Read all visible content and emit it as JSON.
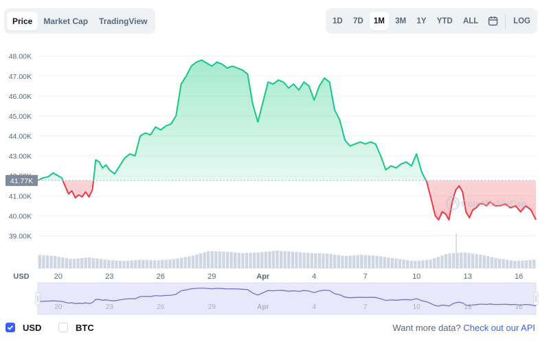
{
  "tabs_left": [
    "Price",
    "Market Cap",
    "TradingView"
  ],
  "tabs_left_active": 0,
  "tabs_right": [
    "1D",
    "7D",
    "1M",
    "3M",
    "1Y",
    "YTD",
    "ALL"
  ],
  "tabs_right_active": 2,
  "log_label": "LOG",
  "calendar_icon": "calendar-icon",
  "watermark": "CoinMarketCap",
  "footer": {
    "usd_label": "USD",
    "btc_label": "BTC",
    "usd_checked": true,
    "btc_checked": false,
    "api_text": "Want more data?",
    "api_link": "Check out our API"
  },
  "colors": {
    "up": "#16c784",
    "down": "#ea3943",
    "accent": "#3861fb",
    "volume": "#cfd6e4",
    "nav_line": "#6f6fcf",
    "nav_fill": "#e8e8fa"
  },
  "chart_data": {
    "type": "area",
    "currency_label": "USD",
    "y_ticks": [
      "48.00K",
      "47.00K",
      "46.00K",
      "45.00K",
      "44.00K",
      "43.00K",
      "42.00K",
      "41.00K",
      "40.00K",
      "39.00K"
    ],
    "ylim": [
      38500,
      48300
    ],
    "reference_value": 41770,
    "reference_label": "41.77K",
    "x_ticks": [
      "20",
      "23",
      "26",
      "29",
      "Apr",
      "4",
      "7",
      "10",
      "13",
      "16"
    ],
    "x_tick_positions": [
      1.2,
      4.2,
      7.2,
      10.2,
      13.2,
      16.2,
      19.2,
      22.2,
      25.2,
      28.2
    ],
    "xlim": [
      0,
      29.2
    ],
    "price": {
      "x": [
        0,
        0.3,
        0.6,
        0.9,
        1.2,
        1.4,
        1.6,
        1.8,
        2.0,
        2.2,
        2.4,
        2.6,
        2.8,
        3.0,
        3.2,
        3.4,
        3.6,
        3.8,
        4.0,
        4.2,
        4.5,
        4.8,
        5.1,
        5.4,
        5.7,
        6.0,
        6.3,
        6.6,
        6.9,
        7.2,
        7.5,
        7.8,
        8.1,
        8.4,
        8.7,
        9.0,
        9.3,
        9.6,
        9.9,
        10.2,
        10.5,
        10.8,
        11.1,
        11.4,
        11.7,
        12.0,
        12.3,
        12.6,
        12.9,
        13.2,
        13.5,
        13.8,
        14.1,
        14.4,
        14.7,
        15.0,
        15.3,
        15.6,
        15.9,
        16.2,
        16.5,
        16.8,
        17.1,
        17.4,
        17.7,
        18.0,
        18.3,
        18.6,
        18.9,
        19.2,
        19.5,
        19.8,
        20.1,
        20.4,
        20.7,
        21.0,
        21.3,
        21.6,
        21.9,
        22.2,
        22.5,
        22.8,
        23.1,
        23.3,
        23.5,
        23.7,
        23.9,
        24.1,
        24.3,
        24.5,
        24.7,
        24.9,
        25.1,
        25.3,
        25.5,
        25.7,
        25.9,
        26.1,
        26.3,
        26.5,
        26.8,
        27.1,
        27.4,
        27.7,
        28.0,
        28.3,
        28.6,
        28.9,
        29.2
      ],
      "y": [
        41770,
        41900,
        41950,
        42150,
        42000,
        41900,
        41500,
        41100,
        41250,
        40900,
        41050,
        40950,
        41200,
        40950,
        41300,
        42800,
        42700,
        42400,
        42550,
        42300,
        42100,
        42500,
        42900,
        43100,
        43000,
        44000,
        44150,
        44050,
        44450,
        44300,
        44500,
        44600,
        45000,
        46600,
        47000,
        47500,
        47700,
        47800,
        47650,
        47500,
        47700,
        47600,
        47400,
        47500,
        47400,
        47300,
        47100,
        45600,
        44700,
        45700,
        46700,
        46600,
        46800,
        46700,
        46400,
        46600,
        46300,
        46700,
        46500,
        45800,
        46500,
        46900,
        46700,
        45300,
        44800,
        43800,
        43500,
        43600,
        43700,
        43600,
        43700,
        43600,
        43000,
        42300,
        42500,
        42400,
        42600,
        42700,
        42500,
        43100,
        42200,
        41700,
        40700,
        40000,
        39800,
        40200,
        40100,
        39800,
        40700,
        41300,
        41500,
        41200,
        40200,
        39900,
        40300,
        40400,
        40600,
        40600,
        40500,
        40700,
        40500,
        40500,
        40600,
        40400,
        40500,
        40200,
        40500,
        40300,
        39800
      ]
    },
    "volume": {
      "x": [
        0,
        1,
        2,
        3,
        4,
        5,
        6,
        7,
        8,
        9,
        10,
        11,
        12,
        13,
        14,
        15,
        16,
        17,
        18,
        19,
        20,
        21,
        22,
        23,
        24,
        25,
        26,
        27,
        28,
        29
      ],
      "values": [
        0.55,
        0.5,
        0.38,
        0.45,
        0.35,
        0.3,
        0.35,
        0.32,
        0.38,
        0.5,
        0.7,
        0.68,
        0.62,
        0.65,
        0.72,
        0.68,
        0.62,
        0.6,
        0.5,
        0.55,
        0.5,
        0.4,
        0.3,
        0.35,
        0.6,
        0.65,
        0.55,
        0.4,
        0.3,
        0.35
      ],
      "spike_x": 24.5,
      "spike_value": 1.0
    }
  }
}
